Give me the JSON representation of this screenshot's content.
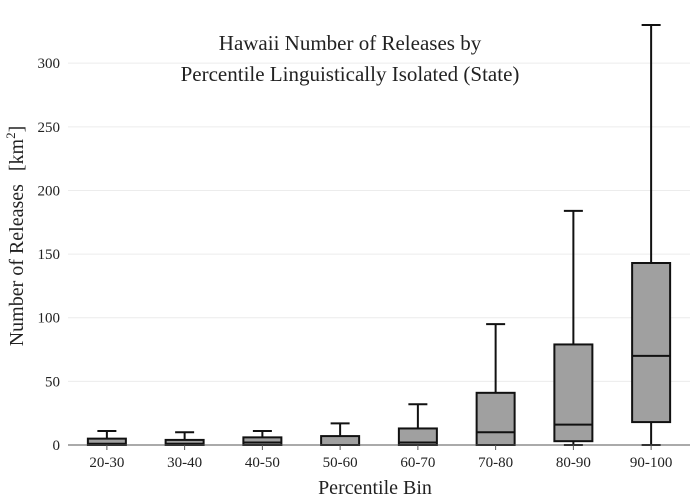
{
  "chart_data": {
    "type": "box",
    "title_lines": [
      "Hawaii Number of Releases by",
      "Percentile Linguistically Isolated (State)"
    ],
    "xlabel": "Percentile Bin",
    "ylabel": "Number of Releases",
    "ylabel_unit": "[km",
    "ylabel_unit_sup": "2",
    "ylabel_unit_close": "]",
    "ylim": [
      0,
      330
    ],
    "yticks": [
      0,
      50,
      100,
      150,
      200,
      250,
      300
    ],
    "grid": true,
    "box_color": "#a0a0a0",
    "categories": [
      "20-30",
      "30-40",
      "40-50",
      "50-60",
      "60-70",
      "70-80",
      "80-90",
      "90-100"
    ],
    "boxes": [
      {
        "min": 0,
        "q1": 0,
        "median": 1,
        "q3": 5,
        "max": 11
      },
      {
        "min": 0,
        "q1": 0,
        "median": 1,
        "q3": 4,
        "max": 10
      },
      {
        "min": 0,
        "q1": 0,
        "median": 2,
        "q3": 6,
        "max": 11
      },
      {
        "min": 0,
        "q1": 0,
        "median": 0,
        "q3": 7,
        "max": 17
      },
      {
        "min": 0,
        "q1": 0,
        "median": 2,
        "q3": 13,
        "max": 32
      },
      {
        "min": 0,
        "q1": 0,
        "median": 10,
        "q3": 41,
        "max": 95
      },
      {
        "min": 0,
        "q1": 3,
        "median": 16,
        "q3": 79,
        "max": 184
      },
      {
        "min": 0,
        "q1": 18,
        "median": 70,
        "q3": 143,
        "max": 330
      }
    ]
  }
}
